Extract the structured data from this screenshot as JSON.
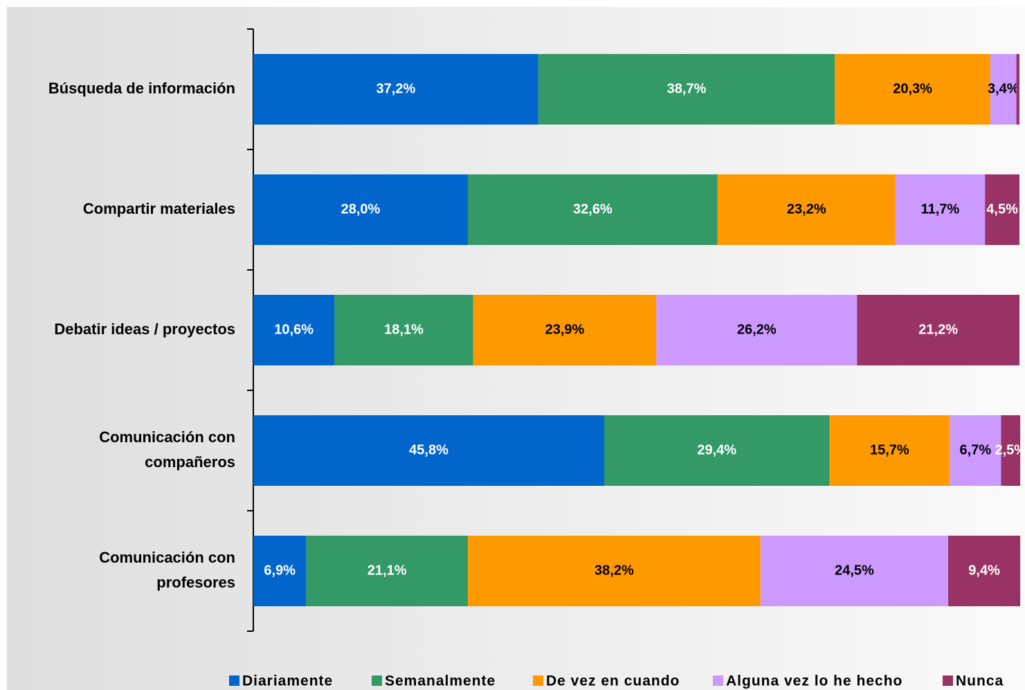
{
  "chart_data": {
    "type": "stacked-bar-horizontal",
    "categories": [
      "Búsqueda de información",
      "Compartir materiales",
      "Debatir ideas / proyectos",
      "Comunicación con\ncompañeros",
      "Comunicación con\nprofesores"
    ],
    "xlim": [
      0,
      100
    ],
    "series": [
      {
        "name": "Diariamente",
        "color": "#0066cc",
        "values": [
          37.2,
          28.0,
          10.6,
          45.8,
          6.9
        ],
        "value_labels": [
          "37,2%",
          "28,0%",
          "10,6%",
          "45,8%",
          "6,9%"
        ]
      },
      {
        "name": "Semanalmente",
        "color": "#339966",
        "values": [
          38.7,
          32.6,
          18.1,
          29.4,
          21.1
        ],
        "value_labels": [
          "38,7%",
          "32,6%",
          "18,1%",
          "29,4%",
          "21,1%"
        ]
      },
      {
        "name": "De vez en cuando",
        "color": "#ff9900",
        "values": [
          20.3,
          23.2,
          23.9,
          15.7,
          38.2
        ],
        "value_labels": [
          "20,3%",
          "23,2%",
          "23,9%",
          "15,7%",
          "38,2%"
        ]
      },
      {
        "name": "Alguna vez lo he hecho",
        "color": "#cc99ff",
        "values": [
          3.4,
          11.7,
          26.2,
          6.7,
          24.5
        ],
        "value_labels": [
          "3,4%",
          "11,7%",
          "26,2%",
          "6,7%",
          "24,5%"
        ]
      },
      {
        "name": "Nunca",
        "color": "#993366",
        "values": [
          0.4,
          4.5,
          21.2,
          2.5,
          9.4
        ],
        "value_labels": [
          null,
          "4,5%",
          "21,2%",
          "2,5%",
          "9,4%"
        ]
      }
    ],
    "legend": "bottom"
  }
}
